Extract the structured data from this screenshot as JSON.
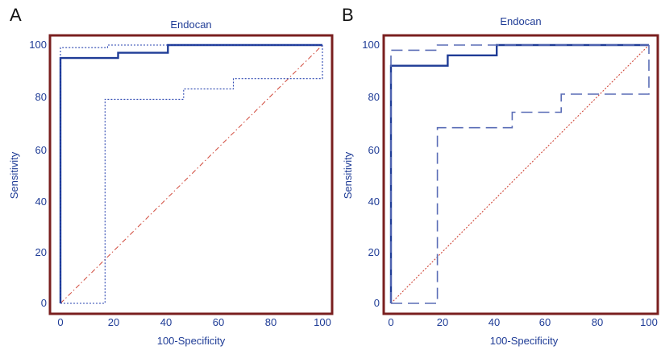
{
  "colors": {
    "frame": "#7a1f1f",
    "roc": "#1f3c96",
    "ci_a": "#2a45b0",
    "ci_b": "#5a6db6",
    "diagonal": "#d0483a",
    "text": "#1f3c96"
  },
  "chart_data": [
    {
      "panel": "A",
      "type": "line",
      "title": "Endocan",
      "xlabel": "100-Specificity",
      "ylabel": "Sensitivity",
      "xlim": [
        0,
        100
      ],
      "ylim": [
        0,
        100
      ],
      "xticks": [
        "0",
        "20",
        "40",
        "60",
        "80",
        "100"
      ],
      "yticks": [
        "0",
        "20",
        "40",
        "60",
        "80",
        "100"
      ],
      "grid": false,
      "series": [
        {
          "role": "roc",
          "style": "solid",
          "x": [
            0,
            0,
            22,
            22,
            41,
            41,
            100
          ],
          "y": [
            0,
            95,
            95,
            97,
            97,
            100,
            100
          ]
        },
        {
          "role": "ci_upper",
          "style": "dotted",
          "x": [
            0,
            0,
            18,
            18,
            100
          ],
          "y": [
            0,
            99,
            99,
            100,
            100
          ]
        },
        {
          "role": "ci_lower",
          "style": "dotted",
          "x": [
            0,
            17,
            17,
            47,
            47,
            66,
            66,
            100,
            100
          ],
          "y": [
            0,
            0,
            79,
            79,
            83,
            83,
            87,
            87,
            100
          ]
        },
        {
          "role": "reference",
          "style": "dash-dot",
          "x": [
            0,
            100
          ],
          "y": [
            0,
            100
          ]
        }
      ]
    },
    {
      "panel": "B",
      "type": "line",
      "title": "Endocan",
      "xlabel": "100-Specificity",
      "ylabel": "Sensitivity",
      "xlim": [
        0,
        100
      ],
      "ylim": [
        0,
        100
      ],
      "xticks": [
        "0",
        "20",
        "40",
        "60",
        "80",
        "100"
      ],
      "yticks": [
        "0",
        "20",
        "40",
        "60",
        "80",
        "100"
      ],
      "grid": false,
      "series": [
        {
          "role": "roc",
          "style": "solid",
          "x": [
            0,
            0,
            22,
            22,
            41,
            41,
            100
          ],
          "y": [
            0,
            92,
            92,
            96,
            96,
            100,
            100
          ]
        },
        {
          "role": "ci_upper",
          "style": "dashed",
          "x": [
            0,
            0,
            18,
            18,
            100
          ],
          "y": [
            0,
            98,
            98,
            100,
            100
          ]
        },
        {
          "role": "ci_lower",
          "style": "dashed",
          "x": [
            0,
            18,
            18,
            47,
            47,
            66,
            66,
            100,
            100
          ],
          "y": [
            0,
            0,
            68,
            68,
            74,
            74,
            81,
            81,
            100
          ]
        },
        {
          "role": "reference",
          "style": "dotted",
          "x": [
            0,
            100
          ],
          "y": [
            0,
            100
          ]
        }
      ]
    }
  ]
}
